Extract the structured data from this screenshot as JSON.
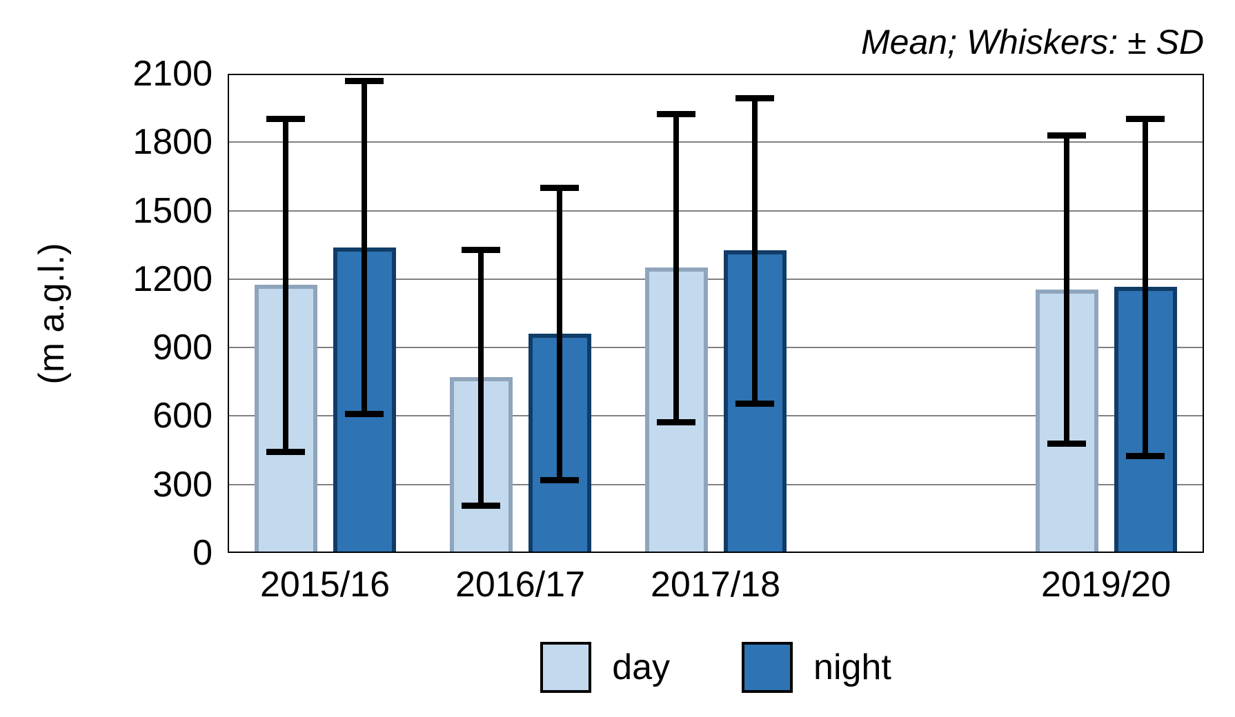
{
  "chart_data": {
    "type": "bar",
    "annotation": "Mean; Whiskers: ± SD",
    "ylabel": "(m a.g.l.)",
    "xlabel": "",
    "categories": [
      "2015/16",
      "2016/17",
      "2017/18",
      "2019/20"
    ],
    "x_slots": [
      0,
      1,
      2,
      4
    ],
    "ylim": [
      0,
      2100
    ],
    "yticks": [
      0,
      300,
      600,
      900,
      1200,
      1500,
      1800,
      2100
    ],
    "grid": true,
    "legend_position": "bottom",
    "error_bars": "mean ± SD",
    "series": [
      {
        "name": "day",
        "fill": "#C3D9EE",
        "border": "#8EA5BC",
        "means": [
          1175,
          770,
          1250,
          1155
        ],
        "sd": [
          730,
          560,
          675,
          675
        ],
        "whisker_high": [
          1905,
          1330,
          1925,
          1830
        ],
        "whisker_low": [
          445,
          210,
          575,
          480
        ]
      },
      {
        "name": "night",
        "fill": "#2E73B3",
        "border": "#103C68",
        "means": [
          1340,
          960,
          1325,
          1165
        ],
        "sd": [
          730,
          640,
          670,
          740
        ],
        "whisker_high": [
          2070,
          1600,
          1995,
          1905
        ],
        "whisker_low": [
          610,
          320,
          655,
          425
        ]
      }
    ]
  }
}
